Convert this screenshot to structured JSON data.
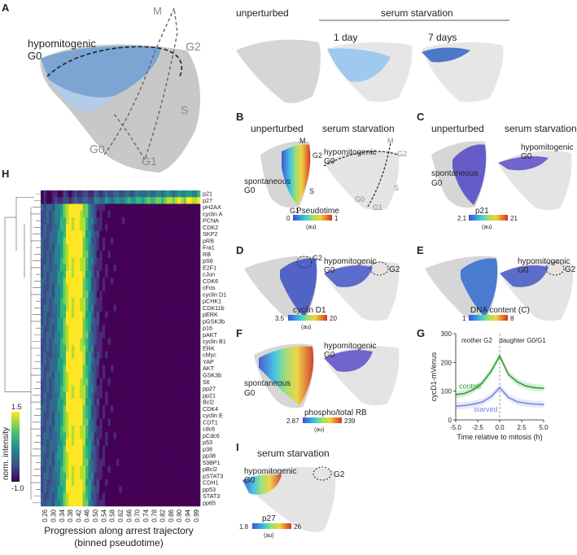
{
  "panel_labels": {
    "A": "A",
    "B": "B",
    "C": "C",
    "D": "D",
    "E": "E",
    "F": "F",
    "G": "G",
    "H": "H",
    "I": "I"
  },
  "panelA": {
    "hypomitogenic": "hypomitogenic",
    "g0_left": "G0",
    "M": "M",
    "G2": "G2",
    "S": "S",
    "G0_bottom": "G0",
    "G1": "G1",
    "unperturbed": "unperturbed",
    "serum_starvation": "serum starvation",
    "day1": "1 day",
    "day7": "7 days"
  },
  "panelB": {
    "unperturbed": "unperturbed",
    "serum_starvation": "serum starvation",
    "spontaneous": "spontaneous",
    "g0": "G0",
    "M": "M",
    "G2": "G2",
    "S": "S",
    "G1": "G1",
    "hypomitogenic": "hypomitogenic",
    "g0_right": "G0",
    "M2": "M",
    "G2_right": "G2",
    "G0b": "G0",
    "G1b": "G1",
    "S2": "S",
    "cbar_title": "Pseudotime",
    "cbar_min": "0",
    "cbar_max": "1",
    "cbar_unit": "(au)"
  },
  "panelC": {
    "unperturbed": "unperturbed",
    "serum_starvation": "serum starvation",
    "spontaneous": "spontaneous",
    "g0": "G0",
    "hypomitogenic": "hypomitogenic",
    "g0_right": "G0",
    "cbar_title": "p21",
    "cbar_min": "2.1",
    "cbar_max": "21",
    "cbar_unit": "(au)"
  },
  "panelD": {
    "hypomitogenic": "hypomitogenic",
    "g0_right": "G0",
    "G2a": "G2",
    "G2b": "G2",
    "cbar_title": "cyclin D1",
    "cbar_min": "3.5",
    "cbar_max": "20",
    "cbar_unit": "(au)"
  },
  "panelE": {
    "hypomitogenic": "hypomitogenic",
    "g0_right": "G0",
    "G2": "G2",
    "cbar_title": "DNA content (C)",
    "cbar_min": "1",
    "cbar_max": "8"
  },
  "panelF": {
    "spontaneous": "spontaneous",
    "g0": "G0",
    "hypomitogenic": "hypomitogenic",
    "g0_right": "G0",
    "cbar_title": "phospho/total RB",
    "cbar_min": "2.87",
    "cbar_max": "239",
    "cbar_unit": "(au)"
  },
  "panelI": {
    "serum_starvation": "serum starvation",
    "hypomitogenic": "hypomitogenic",
    "g0": "G0",
    "G2": "G2",
    "cbar_title": "p27",
    "cbar_min": "1.8",
    "cbar_max": "26",
    "cbar_unit": "(au)"
  },
  "colors": {
    "control": "#2ea02e",
    "starved": "#7b86e0",
    "track": "#777777"
  },
  "chart_data": [
    {
      "type": "line",
      "panel": "G",
      "title": "",
      "xlabel": "Time relative to mitosis (h)",
      "ylabel": "cycD1-mVenus",
      "xlim": [
        -5.0,
        5.0
      ],
      "ylim": [
        0,
        300
      ],
      "x_ticks": [
        "-5.0",
        "-2.5",
        "0.0",
        "2.5",
        "5.0"
      ],
      "y_ticks": [
        "0",
        "100",
        "200",
        "300"
      ],
      "annotations": [
        "mother G2",
        "daughter G0/G1"
      ],
      "series": [
        {
          "name": "control",
          "x": [
            -5,
            -4,
            -3,
            -2,
            -1,
            0,
            1,
            2,
            3,
            4,
            5
          ],
          "values": [
            88,
            92,
            105,
            128,
            168,
            222,
            158,
            132,
            118,
            112,
            110
          ]
        },
        {
          "name": "starved",
          "x": [
            -5,
            -4,
            -3,
            -2,
            -1,
            0,
            1,
            2,
            3,
            4,
            5
          ],
          "values": [
            48,
            50,
            55,
            62,
            80,
            112,
            78,
            63,
            58,
            55,
            54
          ]
        }
      ]
    },
    {
      "type": "heatmap",
      "panel": "H",
      "xlabel": "Progression along arrest trajectory",
      "xlabel2": "(binned pseudotime)",
      "colorbar_label": "norm. intensity",
      "colorbar_max": "1.5",
      "colorbar_min": "-1.0",
      "rows": [
        "p21",
        "p27",
        "pH2AX",
        "cyclin A",
        "PCNA",
        "CDK2",
        "SKP2",
        "pRB",
        "Fra1",
        "RB",
        "pS6",
        "E2F1",
        "cJun",
        "CDK6",
        "cFos",
        "cyclin D1",
        "pCHK1",
        "CDK11b",
        "pERK",
        "pGSK3b",
        "p16",
        "pAKT",
        "cyclin B1",
        "ERK",
        "cMyc",
        "YAP",
        "AKT",
        "GSK3b",
        "S6",
        "pp27",
        "pp21",
        "Bcl2",
        "CDK4",
        "cyclin E",
        "CDT1",
        "cdc6",
        "pCdc6",
        "p53",
        "p38",
        "pp38",
        "53BP1",
        "pBcl2",
        "pSTAT3",
        "CDH1",
        "pp53",
        "STAT3",
        "pp65"
      ],
      "columns": [
        "0.26",
        "0.30",
        "0.34",
        "0.38",
        "0.42",
        "0.46",
        "0.50",
        "0.54",
        "0.58",
        "0.62",
        "0.66",
        "0.70",
        "0.74",
        "0.78",
        "0.82",
        "0.86",
        "0.90",
        "0.94",
        "0.99"
      ],
      "values": []
    }
  ]
}
